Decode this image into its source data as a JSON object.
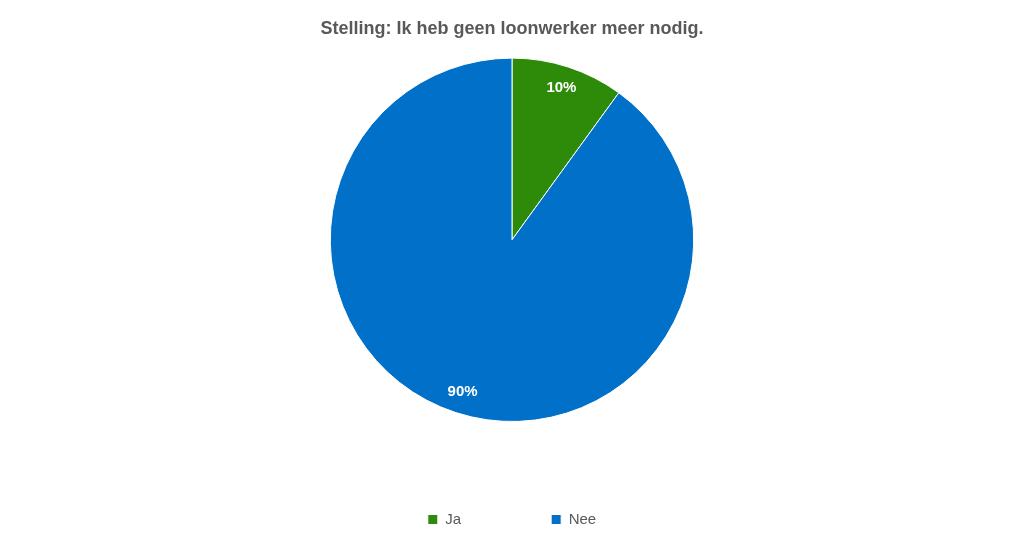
{
  "chart_data": {
    "type": "pie",
    "title": "Stelling: Ik heb geen loonwerker meer nodig.",
    "categories": [
      "Ja",
      "Nee"
    ],
    "values": [
      10,
      90
    ],
    "colors": [
      "#2e8b0a",
      "#0070c8"
    ],
    "value_labels": [
      "10%",
      "90%"
    ],
    "legend": "bottom"
  }
}
